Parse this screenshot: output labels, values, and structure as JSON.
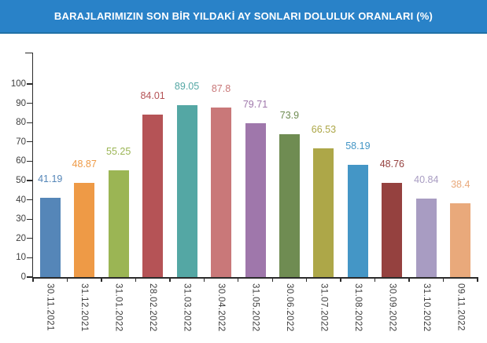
{
  "theme": {
    "titlebar_bg": "#2982C8",
    "titlebar_border": "#2171A6",
    "title_text_color": "#FFFFFF",
    "axis_color": "#2B2B2B",
    "tick_label_color": "#3F3F3F",
    "background": "#FFFFFF"
  },
  "chart_data": {
    "type": "bar",
    "title": "BARAJLARIMIZIN SON BİR YILDAKİ AY SONLARI DOLULUK ORANLARI (%)",
    "categories": [
      "30.11.2021",
      "31.12.2021",
      "31.01.2022",
      "28.02.2022",
      "31.03.2022",
      "30.04.2022",
      "31.05.2022",
      "30.06.2022",
      "31.07.2022",
      "31.08.2022",
      "30.09.2022",
      "31.10.2022",
      "09.11.2022"
    ],
    "values": [
      41.19,
      48.87,
      55.25,
      84.01,
      89.05,
      87.8,
      79.71,
      73.9,
      66.53,
      58.19,
      48.76,
      40.84,
      38.4
    ],
    "bar_colors": [
      "#5586B8",
      "#EE9A46",
      "#9BB554",
      "#B55356",
      "#54A7A4",
      "#C97879",
      "#9F77AB",
      "#6F8C52",
      "#ADA748",
      "#4496C6",
      "#95413F",
      "#A89CC2",
      "#E9A97B"
    ],
    "value_labels_shown": true,
    "xlabel": "",
    "ylabel": "",
    "yticks": [
      0,
      10,
      20,
      30,
      40,
      50,
      60,
      70,
      80,
      90,
      100
    ],
    "ylim": [
      0,
      116
    ],
    "grid": false,
    "legend": false,
    "x_tick_label_rotation": 90
  }
}
